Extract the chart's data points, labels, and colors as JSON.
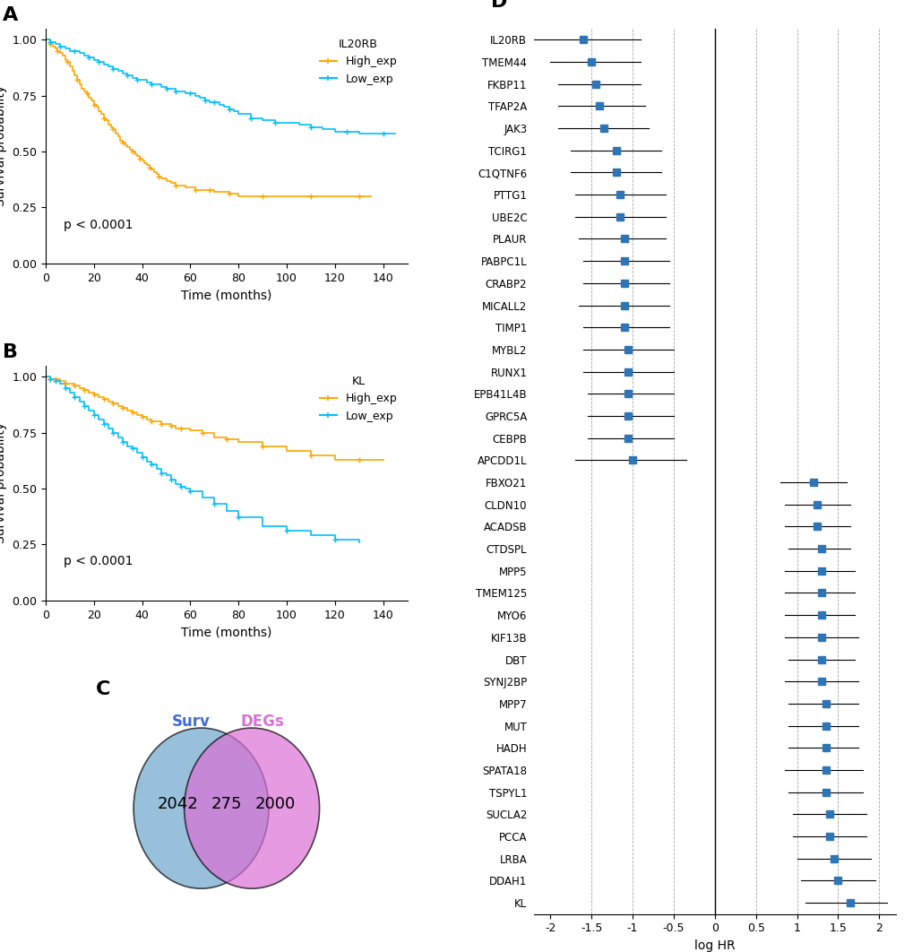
{
  "panel_A": {
    "title": "IL20RB",
    "legend_high": "High_exp",
    "legend_low": "Low_exp",
    "color_high": "#FFA500",
    "color_low": "#00BFFF",
    "pvalue": "p < 0.0001",
    "xlabel": "Time (months)",
    "ylabel": "Survival probability",
    "xlim": [
      0,
      150
    ],
    "ylim": [
      0,
      1.05
    ],
    "high_times": [
      0,
      2,
      3,
      4,
      5,
      6,
      7,
      8,
      9,
      10,
      11,
      12,
      13,
      14,
      15,
      16,
      17,
      18,
      19,
      20,
      21,
      22,
      23,
      24,
      25,
      26,
      27,
      28,
      29,
      30,
      31,
      32,
      33,
      34,
      35,
      36,
      37,
      38,
      39,
      40,
      41,
      42,
      43,
      44,
      45,
      46,
      47,
      48,
      50,
      52,
      54,
      56,
      58,
      60,
      62,
      64,
      66,
      68,
      70,
      72,
      74,
      76,
      78,
      80,
      85,
      90,
      95,
      100,
      105,
      110,
      115,
      120,
      125,
      130,
      135
    ],
    "high_surv": [
      1.0,
      0.98,
      0.97,
      0.96,
      0.95,
      0.94,
      0.93,
      0.91,
      0.9,
      0.88,
      0.86,
      0.84,
      0.82,
      0.8,
      0.78,
      0.77,
      0.76,
      0.74,
      0.73,
      0.71,
      0.7,
      0.68,
      0.67,
      0.65,
      0.64,
      0.62,
      0.61,
      0.6,
      0.58,
      0.57,
      0.55,
      0.54,
      0.53,
      0.52,
      0.51,
      0.5,
      0.49,
      0.48,
      0.47,
      0.46,
      0.45,
      0.44,
      0.43,
      0.42,
      0.41,
      0.4,
      0.39,
      0.38,
      0.37,
      0.36,
      0.35,
      0.35,
      0.34,
      0.34,
      0.33,
      0.33,
      0.33,
      0.33,
      0.32,
      0.32,
      0.32,
      0.31,
      0.31,
      0.3,
      0.3,
      0.3,
      0.3,
      0.3,
      0.3,
      0.3,
      0.3,
      0.3,
      0.3,
      0.3,
      0.3
    ],
    "low_times": [
      0,
      2,
      4,
      6,
      8,
      10,
      12,
      14,
      16,
      18,
      20,
      22,
      24,
      26,
      28,
      30,
      32,
      34,
      36,
      38,
      40,
      42,
      44,
      46,
      48,
      50,
      52,
      54,
      56,
      58,
      60,
      62,
      64,
      66,
      68,
      70,
      72,
      74,
      76,
      78,
      80,
      85,
      90,
      95,
      100,
      105,
      110,
      115,
      120,
      125,
      130,
      135,
      140,
      145
    ],
    "low_surv": [
      1.0,
      0.99,
      0.98,
      0.97,
      0.96,
      0.95,
      0.95,
      0.94,
      0.93,
      0.92,
      0.91,
      0.9,
      0.89,
      0.88,
      0.87,
      0.86,
      0.85,
      0.84,
      0.83,
      0.82,
      0.82,
      0.81,
      0.8,
      0.8,
      0.79,
      0.78,
      0.78,
      0.77,
      0.77,
      0.76,
      0.76,
      0.75,
      0.74,
      0.73,
      0.72,
      0.72,
      0.71,
      0.7,
      0.69,
      0.68,
      0.67,
      0.65,
      0.64,
      0.63,
      0.63,
      0.62,
      0.61,
      0.6,
      0.59,
      0.59,
      0.58,
      0.58,
      0.58,
      0.58
    ]
  },
  "panel_B": {
    "title": "KL",
    "legend_high": "High_exp",
    "legend_low": "Low_exp",
    "color_high": "#FFA500",
    "color_low": "#00BFFF",
    "pvalue": "p < 0.0001",
    "xlabel": "Time (months)",
    "ylabel": "Survival probability",
    "xlim": [
      0,
      150
    ],
    "ylim": [
      0,
      1.05
    ]
  },
  "panel_C": {
    "circle1_label": "Surv",
    "circle2_label": "DEGs",
    "circle1_color": "#6CA6CD",
    "circle2_color": "#DA70D6",
    "overlap_color": "#8B5A8B",
    "circle1_count": "2042",
    "overlap_count": "275",
    "circle2_count": "2000"
  },
  "panel_D": {
    "title": "",
    "xlabel": "log HR",
    "genes": [
      "IL20RB",
      "TMEM44",
      "FKBP11",
      "TFAP2A",
      "JAK3",
      "TCIRG1",
      "C1QTNF6",
      "PTTG1",
      "UBE2C",
      "PLAUR",
      "PABPC1L",
      "CRABP2",
      "MICALL2",
      "TIMP1",
      "MYBL2",
      "RUNX1",
      "EPB41L4B",
      "GPRC5A",
      "CEBPB",
      "APCDD1L",
      "FBXO21",
      "CLDN10",
      "ACADSB",
      "CTDSPL",
      "MPP5",
      "TMEM125",
      "MYO6",
      "KIF13B",
      "DBT",
      "SYNJ2BP",
      "MPP7",
      "MUT",
      "HADH",
      "SPATA18",
      "TSPYL1",
      "SUCLA2",
      "PCCA",
      "LRBA",
      "DDAH1",
      "KL"
    ],
    "hr_log": [
      -1.6,
      -1.5,
      -1.45,
      -1.4,
      -1.35,
      -1.2,
      -1.2,
      -1.15,
      -1.15,
      -1.1,
      -1.1,
      -1.1,
      -1.1,
      -1.1,
      -1.05,
      -1.05,
      -1.05,
      -1.05,
      -1.05,
      -1.0,
      1.2,
      1.25,
      1.25,
      1.3,
      1.3,
      1.3,
      1.3,
      1.3,
      1.3,
      1.3,
      1.35,
      1.35,
      1.35,
      1.35,
      1.35,
      1.4,
      1.4,
      1.45,
      1.5,
      1.65
    ],
    "ci_low": [
      -2.2,
      -2.0,
      -1.9,
      -1.9,
      -1.9,
      -1.75,
      -1.75,
      -1.7,
      -1.7,
      -1.65,
      -1.6,
      -1.6,
      -1.65,
      -1.6,
      -1.6,
      -1.6,
      -1.55,
      -1.55,
      -1.55,
      -1.7,
      0.8,
      0.85,
      0.85,
      0.9,
      0.85,
      0.85,
      0.85,
      0.85,
      0.9,
      0.85,
      0.9,
      0.9,
      0.9,
      0.85,
      0.9,
      0.95,
      0.95,
      1.0,
      1.05,
      1.1
    ],
    "ci_high": [
      -0.9,
      -0.9,
      -0.9,
      -0.85,
      -0.8,
      -0.65,
      -0.65,
      -0.6,
      -0.6,
      -0.6,
      -0.55,
      -0.55,
      -0.55,
      -0.55,
      -0.5,
      -0.5,
      -0.5,
      -0.5,
      -0.5,
      -0.35,
      1.6,
      1.65,
      1.65,
      1.65,
      1.7,
      1.7,
      1.7,
      1.75,
      1.7,
      1.75,
      1.75,
      1.75,
      1.75,
      1.8,
      1.8,
      1.85,
      1.85,
      1.9,
      1.95,
      2.1
    ],
    "dot_color": "#2E75B6",
    "xlim": [
      -2.2,
      2.2
    ],
    "xticks": [
      -2,
      -1.5,
      -1,
      -0.5,
      0,
      0.5,
      1,
      1.5,
      2
    ],
    "dashed_lines": [
      -1.5,
      -1.0,
      -0.5,
      0.5,
      1.0,
      1.5,
      2.0
    ]
  },
  "background_color": "#FFFFFF",
  "panel_labels": [
    "A",
    "B",
    "C",
    "D"
  ],
  "panel_label_fontsize": 16,
  "axis_label_fontsize": 10,
  "tick_fontsize": 9,
  "legend_fontsize": 9
}
